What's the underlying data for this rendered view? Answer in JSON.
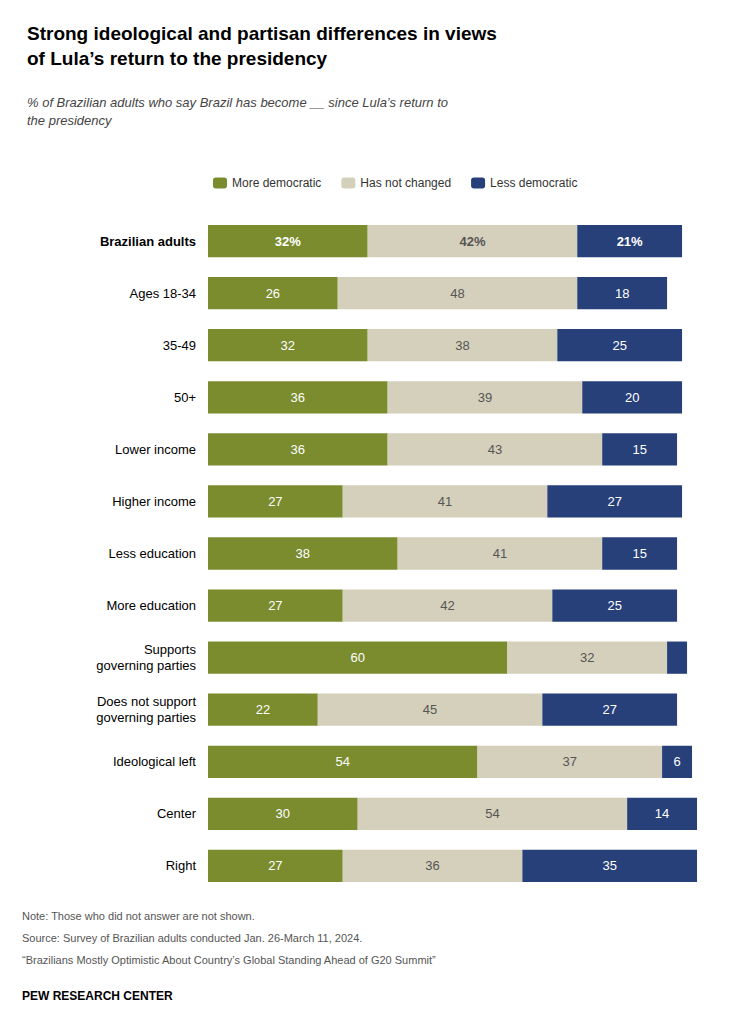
{
  "chart_data": {
    "type": "bar",
    "orientation": "horizontal",
    "stacked": true,
    "title": "Strong ideological and partisan differences in views\nof Lula’s return to the presidency",
    "subtitle": "% of Brazilian adults who say Brazil has become __ since Lula’s return to\nthe presidency",
    "categories": [
      "Brazilian adults",
      "Ages 18-34",
      "35-49",
      "50+",
      "Lower income",
      "Higher income",
      "Less education",
      "More education",
      "Supports\ngoverning parties",
      "Does not support\ngoverning parties",
      "Ideological left",
      "Center",
      "Right"
    ],
    "series": [
      {
        "name": "More democratic",
        "color": "#7a8c2e",
        "values": [
          32,
          26,
          32,
          36,
          36,
          27,
          38,
          27,
          60,
          22,
          54,
          30,
          27
        ],
        "value_labels": [
          "32%",
          "26",
          "32",
          "36",
          "36",
          "27",
          "38",
          "27",
          "60",
          "22",
          "54",
          "30",
          "27"
        ]
      },
      {
        "name": "Has not changed",
        "color": "#d5d0bc",
        "values": [
          42,
          48,
          38,
          39,
          43,
          41,
          41,
          42,
          32,
          45,
          37,
          54,
          36
        ],
        "value_labels": [
          "42%",
          "48",
          "38",
          "39",
          "43",
          "41",
          "41",
          "42",
          "32",
          "45",
          "37",
          "54",
          "36"
        ]
      },
      {
        "name": "Less democratic",
        "color": "#27407a",
        "values": [
          21,
          18,
          25,
          20,
          15,
          27,
          15,
          25,
          4,
          27,
          6,
          14,
          35
        ],
        "value_labels": [
          "21%",
          "18",
          "25",
          "20",
          "15",
          "27",
          "15",
          "25",
          null,
          "27",
          "6",
          "14",
          "35"
        ]
      }
    ],
    "xlim": [
      0,
      100
    ],
    "tick_labels": false,
    "grid": false,
    "legend": "top",
    "data_labels": true,
    "annotations": [
      "Note: Those who did not answer are not shown.",
      "Source: Survey of Brazilian adults conducted Jan. 26-March 11, 2024.",
      "“Brazilians Mostly Optimistic About Country’s Global Standing Ahead of G20 Summit”",
      "PEW RESEARCH CENTER"
    ]
  }
}
